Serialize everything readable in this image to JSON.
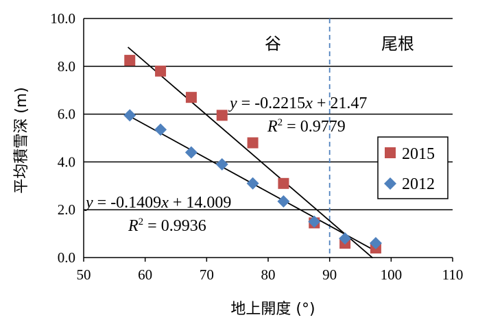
{
  "chart_data": {
    "type": "scatter",
    "xlabel": "地上開度 (°)",
    "ylabel": "平均積雪深 (m)",
    "xlim": [
      50,
      110
    ],
    "ylim": [
      0,
      10
    ],
    "x_ticks": [
      "50",
      "60",
      "70",
      "80",
      "90",
      "100",
      "110"
    ],
    "y_ticks": [
      "0.0",
      "2.0",
      "4.0",
      "6.0",
      "8.0",
      "10.0"
    ],
    "grid": "horizontal",
    "legend_position": "right",
    "divider_x": 90,
    "region_labels": [
      {
        "text": "谷",
        "side": "left"
      },
      {
        "text": "尾根",
        "side": "right"
      }
    ],
    "series": [
      {
        "name": "2015",
        "marker": "square",
        "color": "#c0504d",
        "points": [
          [
            57.5,
            8.25
          ],
          [
            62.5,
            7.8
          ],
          [
            67.5,
            6.7
          ],
          [
            72.5,
            5.95
          ],
          [
            77.5,
            4.8
          ],
          [
            82.5,
            3.1
          ],
          [
            87.5,
            1.45
          ],
          [
            92.5,
            0.6
          ],
          [
            97.5,
            0.4
          ]
        ],
        "trend": {
          "slope": -0.2215,
          "intercept": 21.47,
          "x_range": [
            57.2,
            97.0
          ],
          "equation": {
            "prefix": "y",
            "body": " = -0.2215",
            "var": "x",
            "suffix": " + 21.47"
          },
          "r2": {
            "letter": "R",
            "sup": "2",
            "rest": " = 0.9779"
          }
        }
      },
      {
        "name": "2012",
        "marker": "diamond",
        "color": "#4f81bd",
        "points": [
          [
            57.5,
            5.95
          ],
          [
            62.5,
            5.35
          ],
          [
            67.5,
            4.4
          ],
          [
            72.5,
            3.9
          ],
          [
            77.5,
            3.1
          ],
          [
            82.5,
            2.35
          ],
          [
            87.5,
            1.5
          ],
          [
            92.5,
            0.8
          ],
          [
            97.5,
            0.6
          ]
        ],
        "trend": {
          "slope": -0.1409,
          "intercept": 14.009,
          "x_range": [
            57.2,
            97.5
          ],
          "equation": {
            "prefix": "y",
            "body": " = -0.1409",
            "var": "x",
            "suffix": " + 14.009"
          },
          "r2": {
            "letter": "R",
            "sup": "2",
            "rest": " = 0.9936"
          }
        }
      }
    ]
  },
  "colors": {
    "divider": "#4f81bd",
    "grid": "#000000",
    "trend_line": "#000000"
  }
}
